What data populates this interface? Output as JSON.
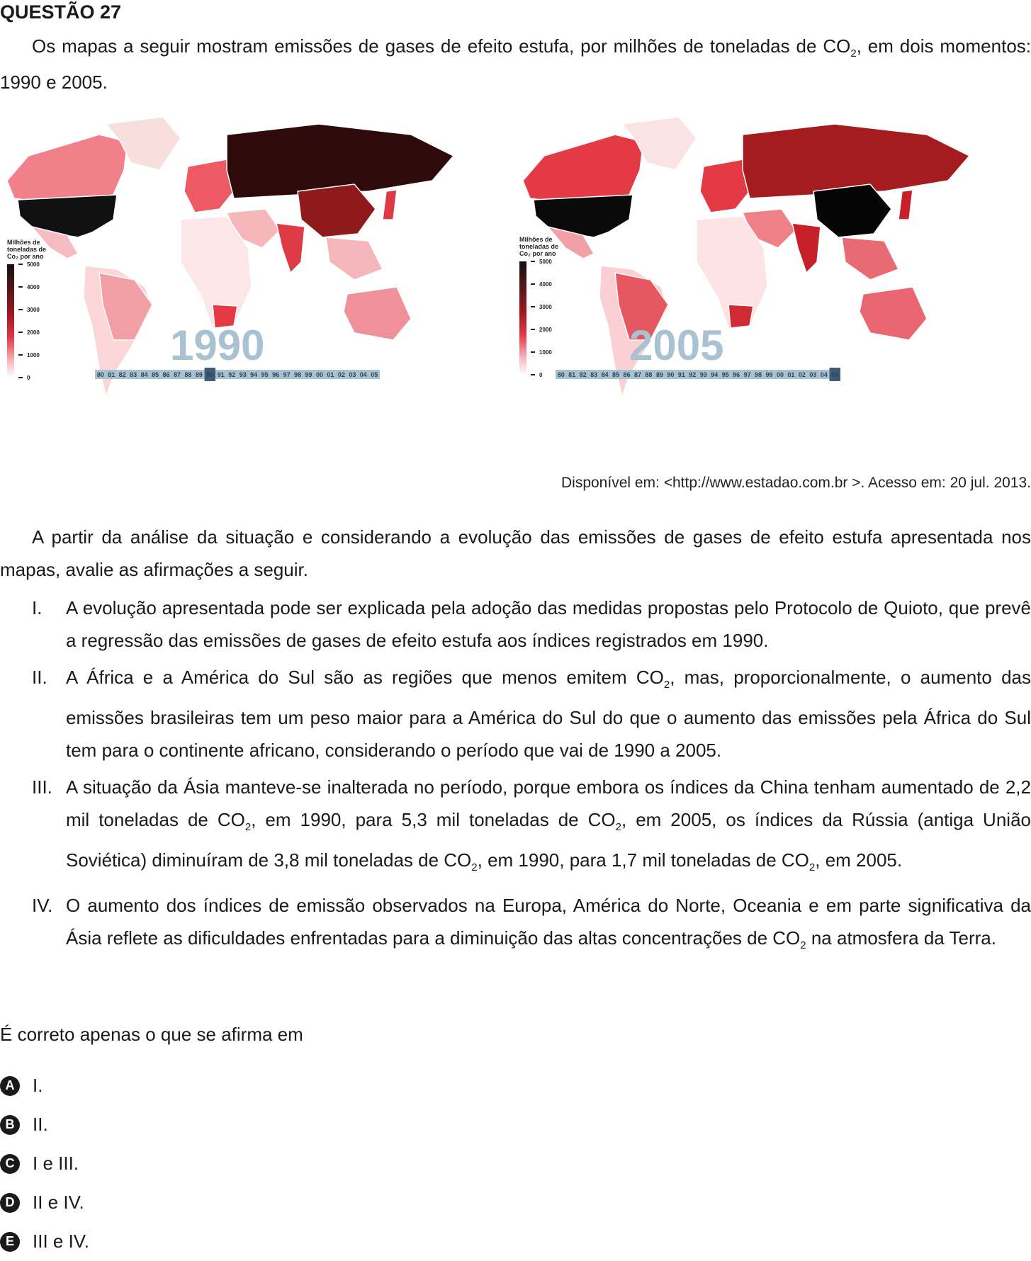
{
  "question_title": "QUESTÃO 27",
  "intro": {
    "before": "Os mapas a seguir mostram emissões de gases de efeito estufa, por milhões de toneladas de CO",
    "sub": "2",
    "after": ", em dois momentos: 1990 e 2005."
  },
  "maps": [
    {
      "year_label": "1990",
      "legend_title": [
        "Milhões de",
        "toneladas de",
        "Co₂ por ano"
      ],
      "legend_ticks": [
        "5000",
        "4000",
        "3000",
        "2000",
        "1000",
        "0"
      ],
      "timeline": [
        "80",
        "81",
        "82",
        "83",
        "84",
        "85",
        "86",
        "87",
        "88",
        "89",
        "90",
        "91",
        "92",
        "93",
        "94",
        "95",
        "96",
        "97",
        "98",
        "99",
        "00",
        "01",
        "02",
        "03",
        "04",
        "05"
      ],
      "timeline_selected": "90"
    },
    {
      "year_label": "2005",
      "legend_title": [
        "Milhões de",
        "toneladas de",
        "Co₂ por ano"
      ],
      "legend_ticks": [
        "5000",
        "4000",
        "3000",
        "2000",
        "1000",
        "0"
      ],
      "timeline": [
        "80",
        "81",
        "82",
        "83",
        "84",
        "85",
        "86",
        "87",
        "88",
        "89",
        "90",
        "91",
        "92",
        "93",
        "94",
        "95",
        "96",
        "97",
        "98",
        "99",
        "00",
        "01",
        "02",
        "03",
        "04",
        "05"
      ],
      "timeline_selected": "05"
    }
  ],
  "source": "Disponível em: <http://www.estadao.com.br >. Acesso em: 20 jul. 2013.",
  "analysis": "A partir da análise da situação e considerando a evolução das emissões de gases de efeito estufa apresentada nos mapas, avalie as afirmações a seguir.",
  "statements": [
    {
      "num": "I.",
      "parts": [
        {
          "t": "A evolução apresentada pode ser explicada pela adoção das medidas propostas pelo Protocolo de Quioto, que prevê a regressão das emissões de gases de efeito estufa aos índices registrados em 1990."
        }
      ]
    },
    {
      "num": "II.",
      "parts": [
        {
          "t": "A África e a América do Sul são as regiões que menos emitem CO"
        },
        {
          "sub": "2"
        },
        {
          "t": ", mas, proporcionalmente, o aumento das emissões brasileiras tem um peso maior para a América do Sul do que o aumento das emissões pela África do Sul tem para o continente africano, considerando o período que vai de 1990 a 2005."
        }
      ]
    },
    {
      "num": "III.",
      "parts": [
        {
          "t": "A situação da Ásia manteve-se inalterada no período, porque embora os índices da China tenham aumentado de 2,2 mil toneladas de CO"
        },
        {
          "sub": "2"
        },
        {
          "t": ", em 1990, para 5,3 mil toneladas de CO"
        },
        {
          "sub": "2"
        },
        {
          "t": ", em 2005, os índices da Rússia (antiga União Soviética) diminuíram de 3,8 mil toneladas de CO"
        },
        {
          "sub": "2"
        },
        {
          "t": ", em 1990, para 1,7 mil toneladas de CO"
        },
        {
          "sub": "2"
        },
        {
          "t": ", em 2005."
        }
      ]
    },
    {
      "num": "IV.",
      "parts": [
        {
          "t": "O aumento dos índices de emissão observados na Europa, América do Norte, Oceania e em parte significativa da Ásia reflete as dificuldades enfrentadas para a diminuição das altas concentrações de CO"
        },
        {
          "sub": "2"
        },
        {
          "t": " na atmosfera da Terra."
        }
      ]
    }
  ],
  "question": "É correto apenas o que se afirma em",
  "options": [
    {
      "letter": "A",
      "text": "I."
    },
    {
      "letter": "B",
      "text": "II."
    },
    {
      "letter": "C",
      "text": "I e III."
    },
    {
      "letter": "D",
      "text": "II e IV."
    },
    {
      "letter": "E",
      "text": "III e IV."
    }
  ]
}
